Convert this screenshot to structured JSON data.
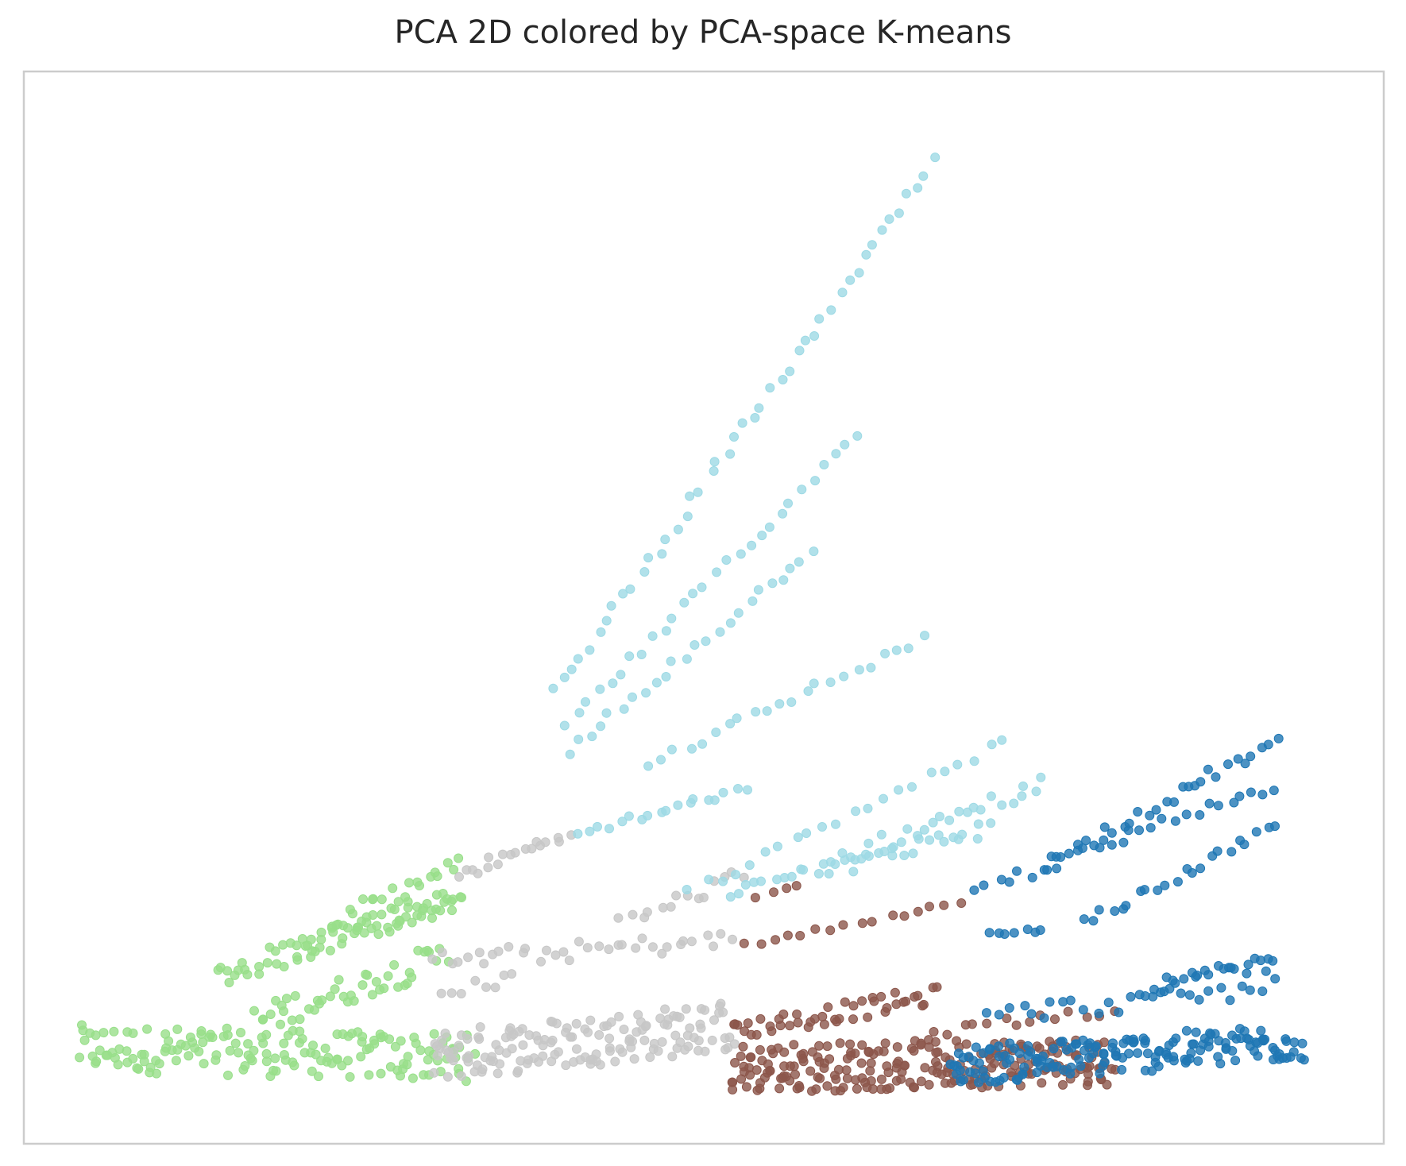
{
  "chart_data": {
    "type": "scatter",
    "title": "PCA 2D colored by PCA-space K-means",
    "xlabel": "",
    "ylabel": "",
    "axes_ticks_shown": false,
    "grid": false,
    "legend": "none",
    "xlim": [
      0,
      100
    ],
    "ylim": [
      0,
      100
    ],
    "series": [
      {
        "color": "#98df8a",
        "ribbons": [
          {
            "x0": 4,
            "y0": 8.9,
            "x1": 33,
            "y1": 8.0,
            "n": 160,
            "spread": 2.2
          },
          {
            "x0": 14,
            "y0": 15.5,
            "x1": 32,
            "y1": 23.0,
            "n": 55,
            "spread": 1.2
          },
          {
            "x0": 17,
            "y0": 11.5,
            "x1": 31,
            "y1": 17.5,
            "n": 45,
            "spread": 1.4
          },
          {
            "x0": 20,
            "y0": 19.0,
            "x1": 32,
            "y1": 22.5,
            "n": 30,
            "spread": 0.8
          },
          {
            "x0": 24,
            "y0": 21.5,
            "x1": 32,
            "y1": 26.0,
            "n": 18,
            "spread": 0.8
          }
        ]
      },
      {
        "color": "#c7c7c7",
        "ribbons": [
          {
            "x0": 30,
            "y0": 8.2,
            "x1": 52,
            "y1": 11.0,
            "n": 150,
            "spread": 2.4
          },
          {
            "x0": 30,
            "y0": 17.0,
            "x1": 52,
            "y1": 19.0,
            "n": 35,
            "spread": 0.9
          },
          {
            "x0": 32,
            "y0": 25.0,
            "x1": 40,
            "y1": 29.0,
            "n": 18,
            "spread": 0.6
          },
          {
            "x0": 44,
            "y0": 20.5,
            "x1": 53,
            "y1": 25.0,
            "n": 14,
            "spread": 0.8
          },
          {
            "x0": 31,
            "y0": 14.0,
            "x1": 36,
            "y1": 15.5,
            "n": 8,
            "spread": 0.6
          }
        ]
      },
      {
        "color": "#8c564b",
        "ribbons": [
          {
            "x0": 52,
            "y0": 7.0,
            "x1": 80,
            "y1": 7.8,
            "n": 230,
            "spread": 2.3
          },
          {
            "x0": 52,
            "y0": 10.5,
            "x1": 67,
            "y1": 13.8,
            "n": 45,
            "spread": 0.9
          },
          {
            "x0": 67,
            "y0": 10.5,
            "x1": 80,
            "y1": 12.5,
            "n": 14,
            "spread": 0.5
          },
          {
            "x0": 53,
            "y0": 18.5,
            "x1": 69,
            "y1": 22.5,
            "n": 16,
            "spread": 0.2
          },
          {
            "x0": 54,
            "y0": 23.0,
            "x1": 57,
            "y1": 24.0,
            "n": 4,
            "spread": 0.2
          }
        ]
      },
      {
        "color": "#1f77b4",
        "ribbons": [
          {
            "x0": 68,
            "y0": 7.2,
            "x1": 94,
            "y1": 9.5,
            "n": 170,
            "spread": 1.8
          },
          {
            "x0": 71,
            "y0": 12.0,
            "x1": 92,
            "y1": 14.5,
            "n": 28,
            "spread": 0.9
          },
          {
            "x0": 83,
            "y0": 14.5,
            "x1": 92,
            "y1": 17.0,
            "n": 24,
            "spread": 0.8
          },
          {
            "x0": 71,
            "y0": 19.5,
            "x1": 75,
            "y1": 20.0,
            "n": 7,
            "spread": 0.2
          },
          {
            "x0": 78,
            "y0": 20.5,
            "x1": 92,
            "y1": 29.5,
            "n": 22,
            "spread": 0.5
          },
          {
            "x0": 70,
            "y0": 23.5,
            "x1": 92,
            "y1": 33.5,
            "n": 28,
            "spread": 0.6
          },
          {
            "x0": 75,
            "y0": 26.0,
            "x1": 92,
            "y1": 37.5,
            "n": 30,
            "spread": 0.6
          }
        ]
      },
      {
        "color": "#9edae5",
        "ribbons": [
          {
            "x0": 39,
            "y0": 42.0,
            "x1": 67,
            "y1": 91.5,
            "n": 45,
            "spread": 0.5
          },
          {
            "x0": 40,
            "y0": 39.0,
            "x1": 61,
            "y1": 66.0,
            "n": 28,
            "spread": 0.5
          },
          {
            "x0": 40,
            "y0": 36.5,
            "x1": 58,
            "y1": 55.5,
            "n": 24,
            "spread": 0.5
          },
          {
            "x0": 46,
            "y0": 35.5,
            "x1": 66,
            "y1": 47.0,
            "n": 22,
            "spread": 0.5
          },
          {
            "x0": 41,
            "y0": 29.0,
            "x1": 53,
            "y1": 33.0,
            "n": 18,
            "spread": 0.4
          },
          {
            "x0": 49,
            "y0": 23.5,
            "x1": 72,
            "y1": 37.5,
            "n": 22,
            "spread": 0.5
          },
          {
            "x0": 52,
            "y0": 23.0,
            "x1": 75,
            "y1": 33.5,
            "n": 38,
            "spread": 0.8
          },
          {
            "x0": 59,
            "y0": 25.5,
            "x1": 71,
            "y1": 29.5,
            "n": 22,
            "spread": 0.7
          }
        ]
      }
    ]
  }
}
